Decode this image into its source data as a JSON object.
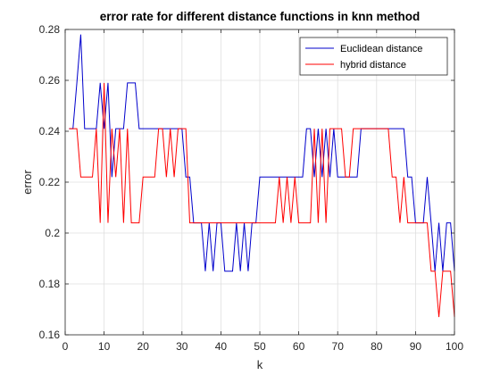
{
  "chart_data": {
    "type": "line",
    "title": "error rate for different distance functions in knn method",
    "xlabel": "k",
    "ylabel": "error",
    "xlim": [
      0,
      100
    ],
    "ylim": [
      0.16,
      0.28
    ],
    "x_ticks": [
      0,
      10,
      20,
      30,
      40,
      50,
      60,
      70,
      80,
      90,
      100
    ],
    "y_ticks": [
      0.16,
      0.18,
      0.2,
      0.22,
      0.24,
      0.26,
      0.28
    ],
    "y_tick_labels": [
      "0.16",
      "0.18",
      "0.2",
      "0.22",
      "0.24",
      "0.26",
      "0.28"
    ],
    "grid": true,
    "legend_position": "top-right",
    "x": [
      1,
      2,
      3,
      4,
      5,
      6,
      7,
      8,
      9,
      10,
      11,
      12,
      13,
      14,
      15,
      16,
      17,
      18,
      19,
      20,
      21,
      22,
      23,
      24,
      25,
      26,
      27,
      28,
      29,
      30,
      31,
      32,
      33,
      34,
      35,
      36,
      37,
      38,
      39,
      40,
      41,
      42,
      43,
      44,
      45,
      46,
      47,
      48,
      49,
      50,
      51,
      52,
      53,
      54,
      55,
      56,
      57,
      58,
      59,
      60,
      61,
      62,
      63,
      64,
      65,
      66,
      67,
      68,
      69,
      70,
      71,
      72,
      73,
      74,
      75,
      76,
      77,
      78,
      79,
      80,
      81,
      82,
      83,
      84,
      85,
      86,
      87,
      88,
      89,
      90,
      91,
      92,
      93,
      94,
      95,
      96,
      97,
      98,
      99,
      100
    ],
    "series": [
      {
        "name": "Euclidean distance",
        "color": "#0000cc",
        "values": [
          0.241,
          0.241,
          0.259,
          0.278,
          0.241,
          0.241,
          0.241,
          0.241,
          0.259,
          0.241,
          0.259,
          0.222,
          0.241,
          0.241,
          0.241,
          0.259,
          0.259,
          0.259,
          0.241,
          0.241,
          0.241,
          0.241,
          0.241,
          0.241,
          0.241,
          0.241,
          0.241,
          0.241,
          0.241,
          0.241,
          0.222,
          0.222,
          0.204,
          0.204,
          0.204,
          0.185,
          0.204,
          0.185,
          0.204,
          0.204,
          0.185,
          0.185,
          0.185,
          0.204,
          0.185,
          0.204,
          0.185,
          0.204,
          0.204,
          0.222,
          0.222,
          0.222,
          0.222,
          0.222,
          0.222,
          0.222,
          0.222,
          0.222,
          0.222,
          0.222,
          0.222,
          0.241,
          0.241,
          0.222,
          0.241,
          0.222,
          0.241,
          0.222,
          0.241,
          0.222,
          0.222,
          0.222,
          0.222,
          0.222,
          0.222,
          0.241,
          0.241,
          0.241,
          0.241,
          0.241,
          0.241,
          0.241,
          0.241,
          0.241,
          0.241,
          0.241,
          0.241,
          0.222,
          0.222,
          0.204,
          0.204,
          0.204,
          0.222,
          0.204,
          0.185,
          0.204,
          0.185,
          0.204,
          0.204,
          0.185
        ]
      },
      {
        "name": "hybrid distance",
        "color": "#ff0000",
        "values": [
          0.241,
          0.241,
          0.241,
          0.222,
          0.222,
          0.222,
          0.222,
          0.241,
          0.204,
          0.259,
          0.204,
          0.241,
          0.222,
          0.241,
          0.204,
          0.241,
          0.204,
          0.204,
          0.204,
          0.222,
          0.222,
          0.222,
          0.222,
          0.241,
          0.241,
          0.222,
          0.241,
          0.222,
          0.241,
          0.241,
          0.241,
          0.204,
          0.204,
          0.204,
          0.204,
          0.204,
          0.204,
          0.204,
          0.204,
          0.204,
          0.204,
          0.204,
          0.204,
          0.204,
          0.204,
          0.204,
          0.204,
          0.204,
          0.204,
          0.204,
          0.204,
          0.204,
          0.204,
          0.204,
          0.222,
          0.204,
          0.222,
          0.204,
          0.222,
          0.204,
          0.204,
          0.204,
          0.204,
          0.241,
          0.204,
          0.241,
          0.204,
          0.241,
          0.241,
          0.241,
          0.241,
          0.222,
          0.222,
          0.241,
          0.241,
          0.241,
          0.241,
          0.241,
          0.241,
          0.241,
          0.241,
          0.241,
          0.241,
          0.222,
          0.222,
          0.204,
          0.222,
          0.204,
          0.204,
          0.204,
          0.204,
          0.204,
          0.204,
          0.185,
          0.185,
          0.167,
          0.185,
          0.185,
          0.185,
          0.167
        ]
      }
    ]
  }
}
